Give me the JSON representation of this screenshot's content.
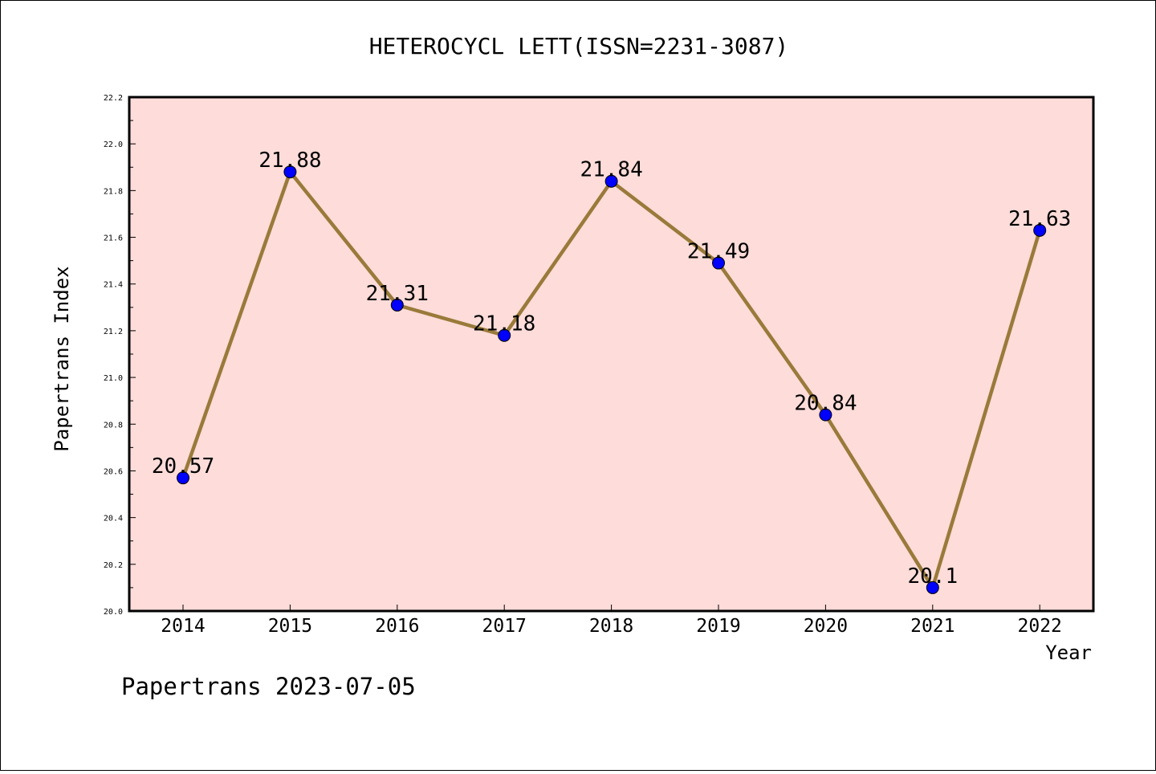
{
  "chart_data": {
    "type": "line",
    "title": "HETEROCYCL LETT(ISSN=2231-3087)",
    "xlabel": "Year",
    "ylabel": "Papertrans Index",
    "categories": [
      "2014",
      "2015",
      "2016",
      "2017",
      "2018",
      "2019",
      "2020",
      "2021",
      "2022"
    ],
    "values": [
      20.57,
      21.88,
      21.31,
      21.18,
      21.84,
      21.49,
      20.84,
      20.1,
      21.63
    ],
    "data_labels": [
      "20.57",
      "21.88",
      "21.31",
      "21.18",
      "21.84",
      "21.49",
      "20.84",
      "20.1",
      "21.63"
    ],
    "ylim": [
      20.0,
      22.2
    ],
    "yticks": [
      "20.0",
      "20.2",
      "20.4",
      "20.6",
      "20.8",
      "21.0",
      "21.2",
      "21.4",
      "21.6",
      "21.8",
      "22.0",
      "22.2"
    ],
    "grid": false,
    "colors": {
      "plot_background": "#fddcd9",
      "line": "#9a7a3a",
      "marker": "#0000ff"
    }
  },
  "footer": "Papertrans 2023-07-05"
}
